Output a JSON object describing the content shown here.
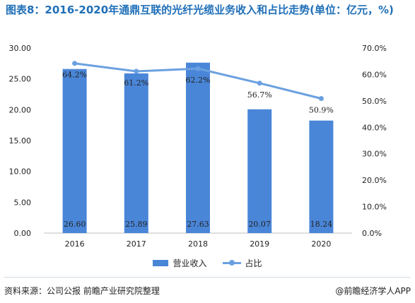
{
  "title": "图表8：2016-2020年通鼎互联的光纤光缆业务收入和占比走势(单位：亿元，%)",
  "chart_data": {
    "type": "bar",
    "categories": [
      "2016",
      "2017",
      "2018",
      "2019",
      "2020"
    ],
    "series": [
      {
        "name": "营业收入",
        "type": "bar",
        "axis": "left",
        "values": [
          26.6,
          25.89,
          27.63,
          20.07,
          18.24
        ],
        "labels": [
          "26.60",
          "25.89",
          "27.63",
          "20.07",
          "18.24"
        ]
      },
      {
        "name": "占比",
        "type": "line",
        "axis": "right",
        "values": [
          64.2,
          61.2,
          62.2,
          56.7,
          50.9
        ],
        "labels": [
          "64.2%",
          "61.2%",
          "62.2%",
          "56.7%",
          "50.9%"
        ]
      }
    ],
    "y_left": {
      "min": 0,
      "max": 30,
      "step": 5,
      "ticks": [
        "0.00",
        "5.00",
        "10.00",
        "15.00",
        "20.00",
        "25.00",
        "30.00"
      ]
    },
    "y_right": {
      "min": 0,
      "max": 70,
      "step": 10,
      "ticks": [
        "0.0%",
        "10.0%",
        "20.0%",
        "30.0%",
        "40.0%",
        "50.0%",
        "60.0%",
        "70.0%"
      ]
    },
    "grid": false,
    "legend_position": "bottom",
    "colors": {
      "bar": "#4a86d8",
      "line": "#6aa0e0"
    }
  },
  "legend": {
    "bar_label": "营业收入",
    "line_label": "占比"
  },
  "footer": {
    "source": "资料来源：公司公报 前瞻产业研究院整理",
    "brand": "@前瞻经济学人APP"
  }
}
